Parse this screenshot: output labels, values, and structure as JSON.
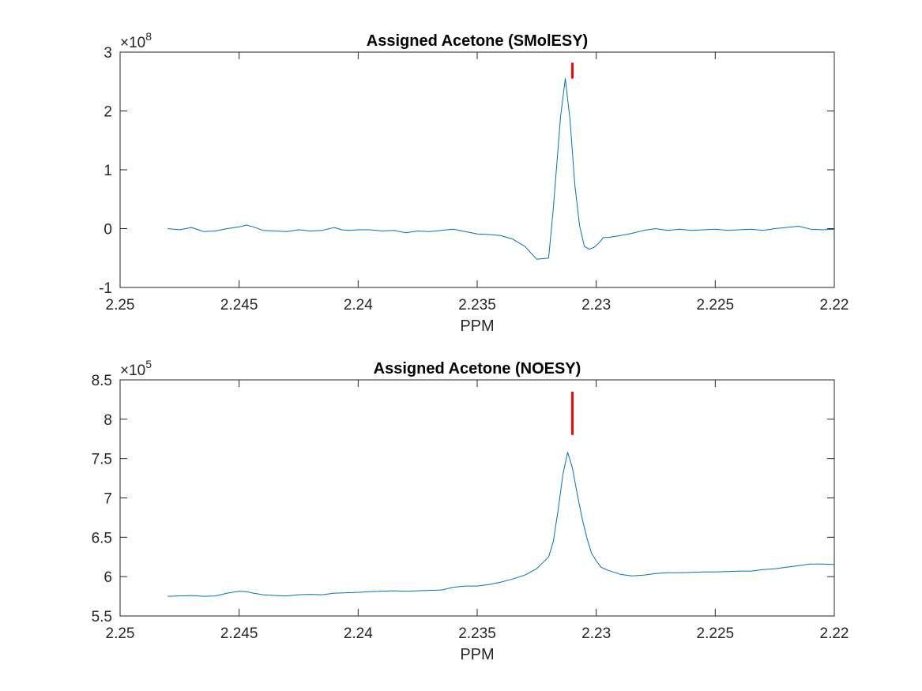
{
  "chart_data": [
    {
      "type": "line",
      "title": "Assigned Acetone (SMolESY)",
      "xlabel": "PPM",
      "ylabel": "",
      "x_reversed": true,
      "xlim": [
        2.22,
        2.25
      ],
      "ylim": [
        -1,
        3
      ],
      "y_multiplier_base": "×10",
      "y_multiplier_exp": "8",
      "x_ticks": [
        2.25,
        2.245,
        2.24,
        2.235,
        2.23,
        2.225,
        2.22
      ],
      "x_tick_labels": [
        "2.25",
        "2.245",
        "2.24",
        "2.235",
        "2.23",
        "2.225",
        "2.22"
      ],
      "y_ticks": [
        -1,
        0,
        1,
        2,
        3
      ],
      "y_tick_labels": [
        "-1",
        "0",
        "1",
        "2",
        "3"
      ],
      "grid": false,
      "line_color": "#0072BD",
      "marker_color": "#FF0000",
      "series": [
        {
          "x": [
            2.248,
            2.2475,
            2.247,
            2.2465,
            2.246,
            2.2455,
            2.245,
            2.2447,
            2.2444,
            2.244,
            2.2435,
            2.243,
            2.2425,
            2.242,
            2.2415,
            2.241,
            2.2407,
            2.2404,
            2.24,
            2.2395,
            2.239,
            2.2385,
            2.238,
            2.2375,
            2.237,
            2.2365,
            2.236,
            2.2355,
            2.235,
            2.2345,
            2.234,
            2.2335,
            2.233,
            2.2325,
            2.232,
            2.2318,
            2.2315,
            2.2313,
            2.2311,
            2.2309,
            2.2307,
            2.2305,
            2.2303,
            2.2301,
            2.2299,
            2.2297,
            2.2295,
            2.229,
            2.2285,
            2.228,
            2.2275,
            2.227,
            2.2265,
            2.226,
            2.2255,
            2.225,
            2.2245,
            2.224,
            2.2235,
            2.223,
            2.2225,
            2.222,
            2.2215,
            2.221,
            2.2205,
            2.22
          ],
          "y": [
            0.0,
            -0.02,
            0.02,
            -0.05,
            -0.04,
            0.0,
            0.03,
            0.06,
            0.03,
            -0.03,
            -0.04,
            -0.05,
            -0.02,
            -0.04,
            -0.03,
            0.02,
            -0.02,
            -0.03,
            -0.02,
            -0.02,
            -0.04,
            -0.03,
            -0.07,
            -0.04,
            -0.05,
            -0.03,
            -0.01,
            -0.05,
            -0.09,
            -0.1,
            -0.12,
            -0.18,
            -0.3,
            -0.52,
            -0.5,
            0.35,
            1.9,
            2.55,
            1.85,
            0.75,
            0.05,
            -0.3,
            -0.35,
            -0.32,
            -0.25,
            -0.15,
            -0.15,
            -0.12,
            -0.08,
            -0.03,
            0.0,
            -0.03,
            -0.01,
            -0.03,
            -0.02,
            -0.01,
            -0.03,
            -0.02,
            -0.01,
            -0.03,
            0.0,
            0.02,
            0.04,
            -0.01,
            -0.02,
            -0.01
          ]
        }
      ],
      "marker": {
        "x": 2.231,
        "y_range": [
          2.55,
          2.82
        ]
      }
    },
    {
      "type": "line",
      "title": "Assigned Acetone (NOESY)",
      "xlabel": "PPM",
      "ylabel": "",
      "x_reversed": true,
      "xlim": [
        2.22,
        2.25
      ],
      "ylim": [
        5.5,
        8.5
      ],
      "y_multiplier_base": "×10",
      "y_multiplier_exp": "5",
      "x_ticks": [
        2.25,
        2.245,
        2.24,
        2.235,
        2.23,
        2.225,
        2.22
      ],
      "x_tick_labels": [
        "2.25",
        "2.245",
        "2.24",
        "2.235",
        "2.23",
        "2.225",
        "2.22"
      ],
      "y_ticks": [
        5.5,
        6,
        6.5,
        7,
        7.5,
        8,
        8.5
      ],
      "y_tick_labels": [
        "5.5",
        "6",
        "6.5",
        "7",
        "7.5",
        "8",
        "8.5"
      ],
      "grid": false,
      "line_color": "#0072BD",
      "marker_color": "#FF0000",
      "series": [
        {
          "x": [
            2.248,
            2.2475,
            2.247,
            2.2465,
            2.246,
            2.2455,
            2.245,
            2.2447,
            2.2444,
            2.244,
            2.2435,
            2.243,
            2.2425,
            2.242,
            2.2415,
            2.241,
            2.2405,
            2.24,
            2.2395,
            2.239,
            2.2385,
            2.238,
            2.2375,
            2.237,
            2.2365,
            2.236,
            2.2355,
            2.235,
            2.2345,
            2.234,
            2.2335,
            2.233,
            2.2325,
            2.232,
            2.2318,
            2.2316,
            2.2314,
            2.2312,
            2.231,
            2.2308,
            2.2306,
            2.2304,
            2.2302,
            2.23,
            2.2298,
            2.2295,
            2.229,
            2.2285,
            2.228,
            2.2275,
            2.227,
            2.2265,
            2.226,
            2.2255,
            2.225,
            2.2245,
            2.224,
            2.2235,
            2.223,
            2.2225,
            2.222,
            2.2215,
            2.221,
            2.2205,
            2.22
          ],
          "y": [
            5.75,
            5.755,
            5.76,
            5.75,
            5.755,
            5.79,
            5.815,
            5.81,
            5.79,
            5.77,
            5.76,
            5.755,
            5.77,
            5.775,
            5.77,
            5.79,
            5.795,
            5.8,
            5.81,
            5.815,
            5.82,
            5.815,
            5.82,
            5.825,
            5.83,
            5.865,
            5.88,
            5.88,
            5.9,
            5.93,
            5.97,
            6.02,
            6.1,
            6.25,
            6.45,
            6.85,
            7.3,
            7.58,
            7.38,
            7.05,
            6.75,
            6.5,
            6.3,
            6.2,
            6.12,
            6.08,
            6.03,
            6.01,
            6.02,
            6.04,
            6.05,
            6.05,
            6.055,
            6.06,
            6.06,
            6.065,
            6.07,
            6.07,
            6.09,
            6.1,
            6.12,
            6.14,
            6.16,
            6.16,
            6.155
          ]
        }
      ],
      "marker": {
        "x": 2.231,
        "y_range": [
          7.8,
          8.35
        ]
      }
    }
  ]
}
